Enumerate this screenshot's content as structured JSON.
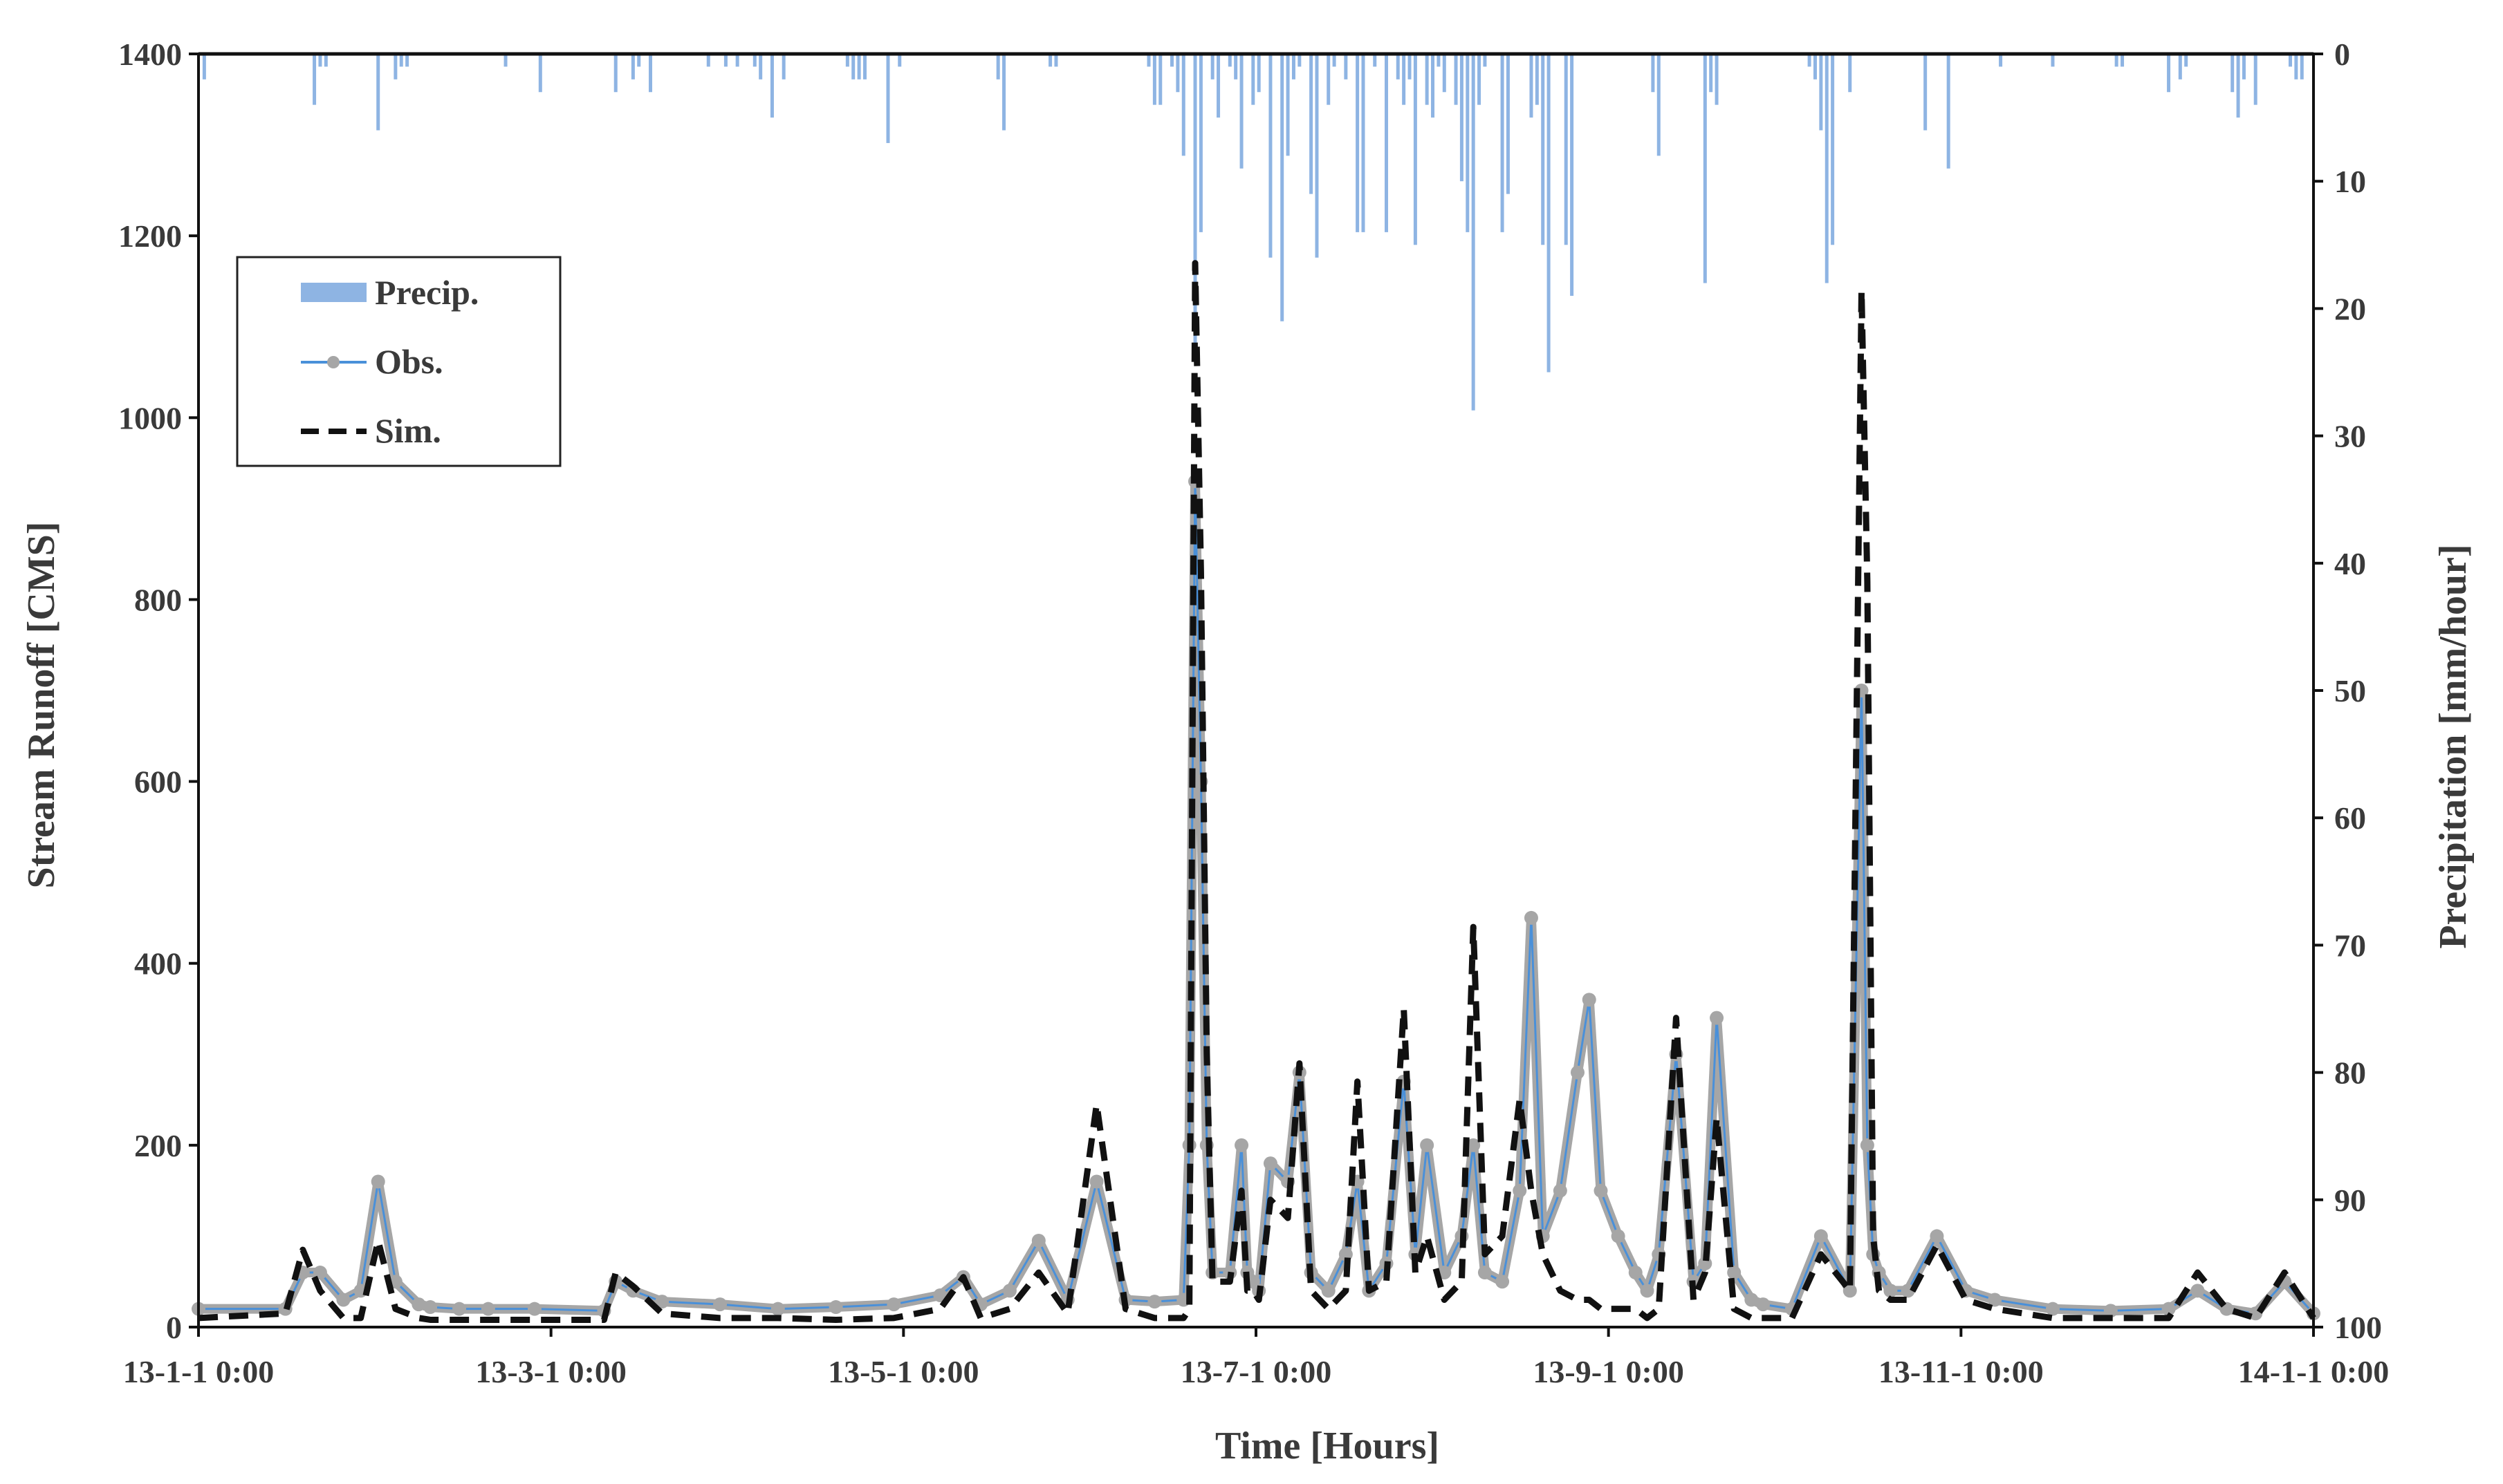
{
  "chart_data": {
    "type": "line",
    "title": "",
    "xlabel": "Time [Hours]",
    "ylabel_left": "Stream Runoff [CMS]",
    "ylabel_right": "Precipitation [mm/hour]",
    "x_ticks": [
      "13-1-1 0:00",
      "13-3-1 0:00",
      "13-5-1 0:00",
      "13-7-1 0:00",
      "13-9-1 0:00",
      "13-11-1 0:00",
      "14-1-1 0:00"
    ],
    "x_range_days": [
      0,
      365
    ],
    "ylim_left": [
      0,
      1400
    ],
    "y_ticks_left": [
      "0",
      "200",
      "400",
      "600",
      "800",
      "1000",
      "1200",
      "1400"
    ],
    "ylim_right_inverted": [
      0,
      100
    ],
    "y_ticks_right": [
      "0",
      "10",
      "20",
      "30",
      "40",
      "50",
      "60",
      "70",
      "80",
      "90",
      "100"
    ],
    "grid": false,
    "legend_position": "top-left",
    "legend": [
      {
        "name": "Precip.",
        "style": "bar",
        "color": "#8EB4E3"
      },
      {
        "name": "Obs.",
        "style": "line-marker",
        "color": "#4A90D9",
        "marker_color": "#A6A6A6"
      },
      {
        "name": "Sim.",
        "style": "dashed",
        "color": "#111111"
      }
    ],
    "series": [
      {
        "name": "Obs.",
        "unit": "CMS",
        "x_days": [
          0,
          15,
          18,
          21,
          25,
          28,
          31,
          34,
          38,
          40,
          45,
          50,
          58,
          70,
          72,
          75,
          80,
          90,
          100,
          110,
          120,
          128,
          132,
          135,
          140,
          145,
          150,
          155,
          160,
          165,
          170,
          171,
          172,
          173,
          174,
          175,
          178,
          180,
          181,
          182,
          183,
          185,
          188,
          190,
          192,
          195,
          198,
          200,
          202,
          205,
          208,
          210,
          212,
          215,
          218,
          220,
          222,
          225,
          228,
          230,
          232,
          235,
          238,
          240,
          242,
          245,
          248,
          250,
          252,
          255,
          258,
          260,
          262,
          265,
          268,
          270,
          275,
          280,
          285,
          287,
          288,
          289,
          290,
          292,
          295,
          300,
          305,
          310,
          320,
          330,
          340,
          345,
          350,
          355,
          360,
          365
        ],
        "values": [
          20,
          20,
          60,
          60,
          30,
          40,
          160,
          50,
          25,
          22,
          20,
          20,
          20,
          18,
          50,
          40,
          28,
          25,
          20,
          22,
          25,
          35,
          55,
          25,
          40,
          95,
          30,
          160,
          30,
          28,
          30,
          200,
          930,
          600,
          200,
          60,
          60,
          200,
          60,
          50,
          40,
          180,
          160,
          280,
          60,
          40,
          80,
          160,
          40,
          70,
          270,
          80,
          200,
          60,
          100,
          200,
          60,
          50,
          150,
          450,
          100,
          150,
          280,
          360,
          150,
          100,
          60,
          40,
          80,
          300,
          50,
          70,
          340,
          60,
          30,
          25,
          20,
          100,
          40,
          700,
          200,
          80,
          60,
          40,
          40,
          100,
          40,
          30,
          20,
          18,
          20,
          40,
          20,
          15,
          50,
          15
        ]
      },
      {
        "name": "Sim.",
        "unit": "CMS",
        "x_days": [
          0,
          15,
          18,
          21,
          25,
          28,
          31,
          34,
          38,
          40,
          45,
          50,
          58,
          70,
          72,
          75,
          80,
          90,
          100,
          110,
          120,
          128,
          132,
          135,
          140,
          145,
          150,
          155,
          160,
          165,
          170,
          171,
          172,
          173,
          174,
          175,
          178,
          180,
          181,
          182,
          183,
          185,
          188,
          190,
          192,
          195,
          198,
          200,
          202,
          205,
          208,
          210,
          212,
          215,
          218,
          220,
          222,
          225,
          228,
          230,
          232,
          235,
          238,
          240,
          242,
          245,
          248,
          250,
          252,
          255,
          258,
          260,
          262,
          265,
          268,
          270,
          275,
          280,
          285,
          287,
          288,
          289,
          290,
          292,
          295,
          300,
          305,
          310,
          320,
          330,
          340,
          345,
          350,
          355,
          360,
          365
        ],
        "values": [
          10,
          15,
          85,
          40,
          10,
          10,
          95,
          20,
          10,
          8,
          8,
          8,
          8,
          8,
          60,
          45,
          15,
          10,
          10,
          8,
          10,
          20,
          55,
          10,
          20,
          60,
          15,
          245,
          20,
          10,
          10,
          20,
          1170,
          830,
          300,
          50,
          50,
          150,
          40,
          40,
          30,
          140,
          120,
          290,
          40,
          20,
          40,
          270,
          40,
          50,
          350,
          60,
          100,
          30,
          50,
          440,
          80,
          100,
          250,
          150,
          80,
          40,
          30,
          30,
          20,
          20,
          20,
          10,
          20,
          340,
          30,
          60,
          230,
          20,
          10,
          10,
          10,
          80,
          40,
          1140,
          820,
          100,
          40,
          30,
          30,
          90,
          30,
          20,
          10,
          10,
          10,
          60,
          20,
          10,
          60,
          10
        ]
      },
      {
        "name": "Precip.",
        "unit": "mm/hour",
        "style": "bar",
        "x_days": [
          1,
          20,
          21,
          22,
          31,
          34,
          35,
          36,
          53,
          59,
          72,
          75,
          76,
          78,
          88,
          91,
          93,
          96,
          97,
          99,
          101,
          112,
          113,
          114,
          115,
          119,
          121,
          138,
          139,
          147,
          148,
          164,
          165,
          166,
          168,
          169,
          170,
          172,
          173,
          175,
          176,
          178,
          179,
          180,
          182,
          183,
          185,
          187,
          188,
          189,
          190,
          192,
          193,
          195,
          196,
          198,
          200,
          201,
          203,
          205,
          207,
          208,
          209,
          210,
          212,
          213,
          214,
          215,
          217,
          218,
          219,
          220,
          221,
          222,
          225,
          226,
          230,
          231,
          232,
          233,
          236,
          237,
          251,
          252,
          260,
          261,
          262,
          278,
          279,
          280,
          281,
          282,
          285,
          298,
          302,
          311,
          320,
          331,
          332,
          340,
          342,
          343,
          351,
          352,
          353,
          355,
          361,
          362,
          363
        ],
        "values": [
          2,
          4,
          1,
          1,
          6,
          2,
          1,
          1,
          1,
          3,
          3,
          2,
          1,
          3,
          1,
          1,
          1,
          1,
          2,
          5,
          2,
          1,
          2,
          2,
          2,
          7,
          1,
          2,
          6,
          1,
          1,
          1,
          4,
          4,
          1,
          3,
          8,
          23,
          14,
          2,
          5,
          1,
          2,
          9,
          4,
          3,
          16,
          21,
          8,
          2,
          1,
          11,
          16,
          4,
          1,
          2,
          14,
          14,
          1,
          14,
          2,
          4,
          2,
          15,
          4,
          5,
          1,
          3,
          4,
          10,
          14,
          28,
          4,
          1,
          14,
          11,
          5,
          4,
          15,
          25,
          15,
          19,
          3,
          8,
          18,
          3,
          4,
          1,
          2,
          6,
          18,
          15,
          3,
          6,
          9,
          1,
          1,
          1,
          1,
          3,
          2,
          1,
          3,
          5,
          2,
          4,
          1,
          2,
          2
        ]
      }
    ]
  }
}
